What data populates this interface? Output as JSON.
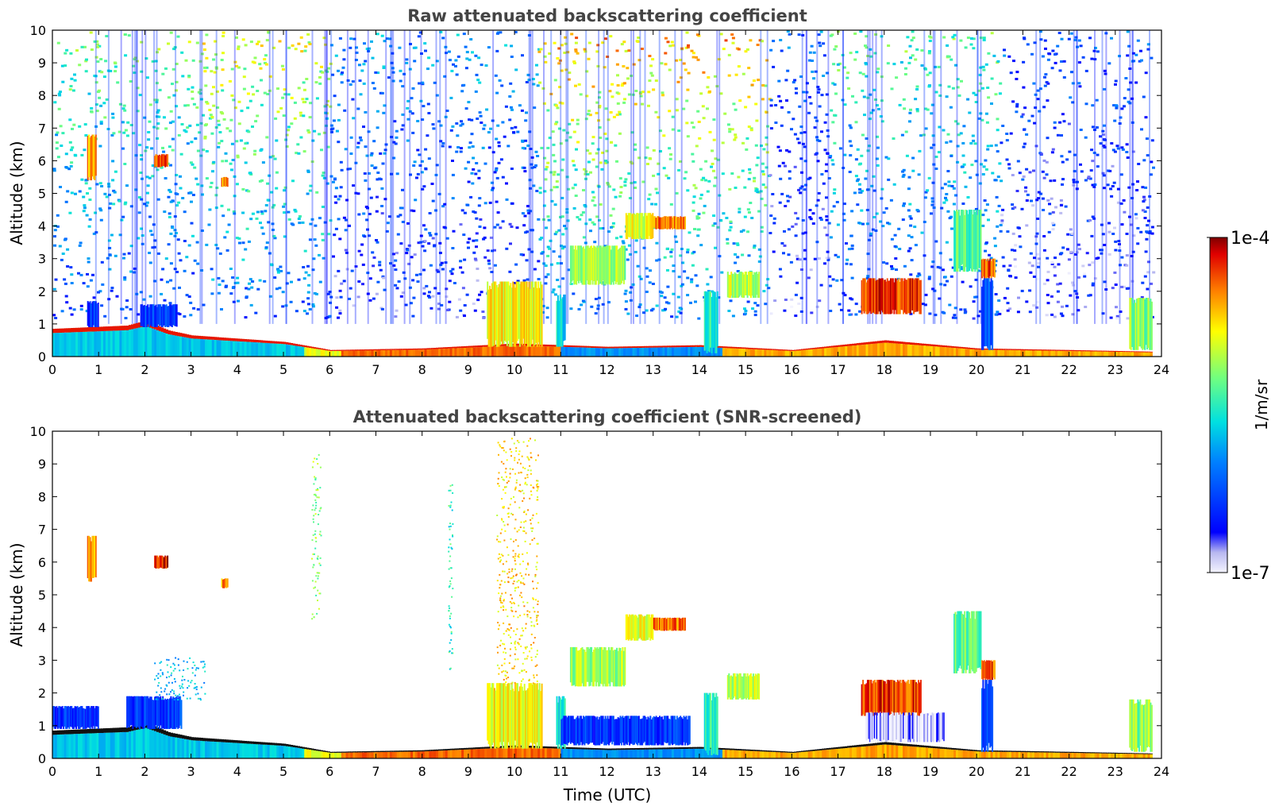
{
  "figure": {
    "colorbar": {
      "label": "1/m/sr",
      "max_label": "1e-4",
      "min_label": "1e-7",
      "scale": "log",
      "range": [
        1e-07,
        0.0001
      ],
      "colormap": "jet with light-blue-to-white low end"
    }
  },
  "chart_data": [
    {
      "type": "heatmap",
      "title": "Raw attenuated backscattering coefficient",
      "xlabel": "",
      "ylabel": "Altitude (km)",
      "x_ticks": [
        "0",
        "1",
        "2",
        "3",
        "4",
        "5",
        "6",
        "7",
        "8",
        "9",
        "10",
        "11",
        "12",
        "13",
        "14",
        "15",
        "16",
        "17",
        "18",
        "19",
        "20",
        "21",
        "22",
        "23",
        "24"
      ],
      "y_ticks": [
        "0",
        "1",
        "2",
        "3",
        "4",
        "5",
        "6",
        "7",
        "8",
        "9",
        "10"
      ],
      "xlim": [
        0,
        24
      ],
      "ylim": [
        0,
        10
      ],
      "grid": false,
      "noise": [
        {
          "t0": 0,
          "t1": 3.2,
          "level": 0.5
        },
        {
          "t0": 3.2,
          "t1": 6,
          "level": 0.58
        },
        {
          "t0": 6,
          "t1": 10.5,
          "level": 0.3
        },
        {
          "t0": 10.5,
          "t1": 15.5,
          "level": 0.66
        },
        {
          "t0": 15.5,
          "t1": 16.8,
          "level": 0.24
        },
        {
          "t0": 16.8,
          "t1": 20.5,
          "level": 0.46
        },
        {
          "t0": 20.5,
          "t1": 23.8,
          "level": 0.22
        }
      ],
      "boundary_layer": [
        {
          "t": 0,
          "top": 0.85
        },
        {
          "t": 0.8,
          "top": 0.9
        },
        {
          "t": 1.6,
          "top": 0.95
        },
        {
          "t": 2,
          "top": 1.1
        },
        {
          "t": 2.5,
          "top": 0.8
        },
        {
          "t": 3,
          "top": 0.65
        },
        {
          "t": 4,
          "top": 0.55
        },
        {
          "t": 5,
          "top": 0.45
        },
        {
          "t": 6,
          "top": 0.2
        },
        {
          "t": 8,
          "top": 0.25
        },
        {
          "t": 10,
          "top": 0.4
        },
        {
          "t": 12,
          "top": 0.3
        },
        {
          "t": 14,
          "top": 0.35
        },
        {
          "t": 16,
          "top": 0.2
        },
        {
          "t": 18,
          "top": 0.5
        },
        {
          "t": 20,
          "top": 0.25
        },
        {
          "t": 22,
          "top": 0.2
        },
        {
          "t": 23.8,
          "top": 0.15
        }
      ],
      "cloud_layers": [
        {
          "t0": 0.75,
          "t1": 0.95,
          "z0": 5.4,
          "z1": 6.8,
          "level": 0.8
        },
        {
          "t0": 2.2,
          "t1": 2.5,
          "z0": 5.8,
          "z1": 6.2,
          "level": 0.9
        },
        {
          "t0": 3.65,
          "t1": 3.8,
          "z0": 5.2,
          "z1": 5.5,
          "level": 0.82
        },
        {
          "t0": 12.4,
          "t1": 13.0,
          "z0": 3.6,
          "z1": 4.4,
          "level": 0.7
        },
        {
          "t0": 13.0,
          "t1": 13.7,
          "z0": 3.9,
          "z1": 4.3,
          "level": 0.85
        },
        {
          "t0": 9.4,
          "t1": 10.6,
          "z0": 0.3,
          "z1": 2.3,
          "level": 0.72
        },
        {
          "t0": 19.5,
          "t1": 20.1,
          "z0": 2.6,
          "z1": 4.5,
          "level": 0.55
        },
        {
          "t0": 20.1,
          "t1": 20.4,
          "z0": 2.4,
          "z1": 3.0,
          "level": 0.88
        },
        {
          "t0": 20.1,
          "t1": 20.35,
          "z0": 0.2,
          "z1": 2.4,
          "level": 0.25
        },
        {
          "t0": 17.5,
          "t1": 18.8,
          "z0": 1.3,
          "z1": 2.4,
          "level": 0.9
        },
        {
          "t0": 23.3,
          "t1": 23.8,
          "z0": 0.2,
          "z1": 1.8,
          "level": 0.6
        },
        {
          "t0": 0.75,
          "t1": 1.0,
          "z0": 0.9,
          "z1": 1.7,
          "level": 0.2
        },
        {
          "t0": 1.9,
          "t1": 2.7,
          "z0": 0.9,
          "z1": 1.6,
          "level": 0.22
        },
        {
          "t0": 10.9,
          "t1": 11.1,
          "z0": 0.3,
          "z1": 1.9,
          "level": 0.45
        },
        {
          "t0": 11.2,
          "t1": 12.4,
          "z0": 2.2,
          "z1": 3.4,
          "level": 0.62
        },
        {
          "t0": 14.1,
          "t1": 14.4,
          "z0": 0.1,
          "z1": 2.0,
          "level": 0.5
        },
        {
          "t0": 14.6,
          "t1": 15.3,
          "z0": 1.8,
          "z1": 2.6,
          "level": 0.65
        }
      ]
    },
    {
      "type": "heatmap",
      "title": "Attenuated backscattering coefficient (SNR-screened)",
      "xlabel": "Time (UTC)",
      "ylabel": "Altitude (km)",
      "x_ticks": [
        "0",
        "1",
        "2",
        "3",
        "4",
        "5",
        "6",
        "7",
        "8",
        "9",
        "10",
        "11",
        "12",
        "13",
        "14",
        "15",
        "16",
        "17",
        "18",
        "19",
        "20",
        "21",
        "22",
        "23",
        "24"
      ],
      "y_ticks": [
        "0",
        "1",
        "2",
        "3",
        "4",
        "5",
        "6",
        "7",
        "8",
        "9",
        "10"
      ],
      "xlim": [
        0,
        24
      ],
      "ylim": [
        0,
        10
      ],
      "grid": false,
      "boundary_layer": [
        {
          "t": 0,
          "top": 0.85
        },
        {
          "t": 0.8,
          "top": 0.9
        },
        {
          "t": 1.6,
          "top": 0.95
        },
        {
          "t": 2,
          "top": 1.1
        },
        {
          "t": 2.5,
          "top": 0.8
        },
        {
          "t": 3,
          "top": 0.65
        },
        {
          "t": 4,
          "top": 0.55
        },
        {
          "t": 5,
          "top": 0.45
        },
        {
          "t": 6,
          "top": 0.2
        },
        {
          "t": 8,
          "top": 0.25
        },
        {
          "t": 10,
          "top": 0.4
        },
        {
          "t": 12,
          "top": 0.3
        },
        {
          "t": 14,
          "top": 0.35
        },
        {
          "t": 16,
          "top": 0.2
        },
        {
          "t": 18,
          "top": 0.5
        },
        {
          "t": 20,
          "top": 0.25
        },
        {
          "t": 22,
          "top": 0.2
        },
        {
          "t": 23.8,
          "top": 0.15
        }
      ],
      "cloud_layers": [
        {
          "t0": 0.75,
          "t1": 0.95,
          "z0": 5.4,
          "z1": 6.8,
          "level": 0.8
        },
        {
          "t0": 2.2,
          "t1": 2.5,
          "z0": 5.8,
          "z1": 6.2,
          "level": 0.95
        },
        {
          "t0": 3.65,
          "t1": 3.8,
          "z0": 5.2,
          "z1": 5.5,
          "level": 0.82
        },
        {
          "t0": 12.4,
          "t1": 13.0,
          "z0": 3.6,
          "z1": 4.4,
          "level": 0.7
        },
        {
          "t0": 13.0,
          "t1": 13.7,
          "z0": 3.9,
          "z1": 4.3,
          "level": 0.85
        },
        {
          "t0": 9.4,
          "t1": 10.6,
          "z0": 0.3,
          "z1": 2.3,
          "level": 0.72
        },
        {
          "t0": 19.5,
          "t1": 20.1,
          "z0": 2.6,
          "z1": 4.5,
          "level": 0.55
        },
        {
          "t0": 20.1,
          "t1": 20.4,
          "z0": 2.4,
          "z1": 3.0,
          "level": 0.88
        },
        {
          "t0": 20.1,
          "t1": 20.35,
          "z0": 0.2,
          "z1": 2.4,
          "level": 0.25
        },
        {
          "t0": 17.5,
          "t1": 18.8,
          "z0": 1.3,
          "z1": 2.4,
          "level": 0.9
        },
        {
          "t0": 23.3,
          "t1": 23.8,
          "z0": 0.2,
          "z1": 1.8,
          "level": 0.6
        },
        {
          "t0": 0.0,
          "t1": 1.0,
          "z0": 0.9,
          "z1": 1.6,
          "level": 0.2
        },
        {
          "t0": 1.6,
          "t1": 2.8,
          "z0": 0.9,
          "z1": 1.9,
          "level": 0.22
        },
        {
          "t0": 10.9,
          "t1": 11.1,
          "z0": 0.3,
          "z1": 1.9,
          "level": 0.45
        },
        {
          "t0": 11.0,
          "t1": 13.8,
          "z0": 0.4,
          "z1": 1.3,
          "level": 0.2
        },
        {
          "t0": 11.2,
          "t1": 12.4,
          "z0": 2.2,
          "z1": 3.4,
          "level": 0.62
        },
        {
          "t0": 14.1,
          "t1": 14.4,
          "z0": 0.1,
          "z1": 2.0,
          "level": 0.5
        },
        {
          "t0": 14.6,
          "t1": 15.3,
          "z0": 1.8,
          "z1": 2.6,
          "level": 0.65
        },
        {
          "t0": 17.6,
          "t1": 19.3,
          "z0": 0.5,
          "z1": 1.4,
          "level": 0.04
        }
      ],
      "sparse_points": [
        {
          "t0": 9.6,
          "t1": 10.5,
          "z0": 2.3,
          "z1": 9.8,
          "level": 0.75
        },
        {
          "t0": 5.6,
          "t1": 5.8,
          "z0": 4.2,
          "z1": 9.3,
          "level": 0.6
        },
        {
          "t0": 8.55,
          "t1": 8.65,
          "z0": 2.5,
          "z1": 8.5,
          "level": 0.5
        },
        {
          "t0": 2.2,
          "t1": 3.3,
          "z0": 1.8,
          "z1": 3.1,
          "level": 0.4
        }
      ]
    }
  ]
}
